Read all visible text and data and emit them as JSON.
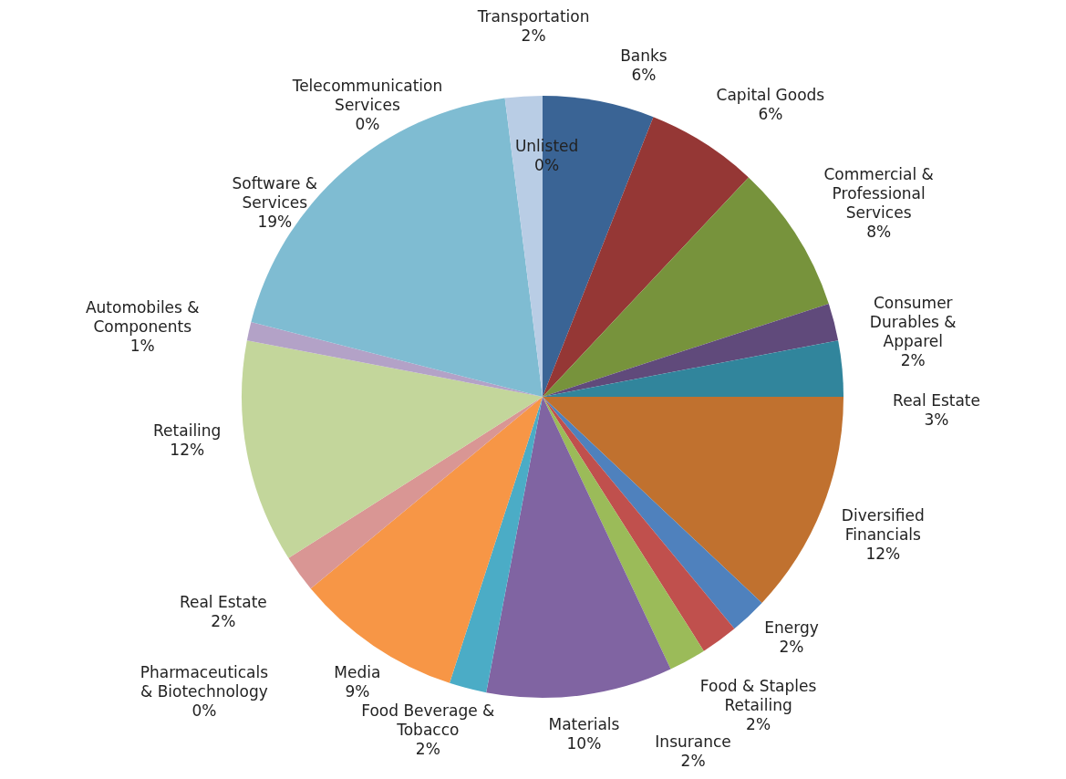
{
  "chart_data": {
    "type": "pie",
    "categories": [
      "Banks",
      "Capital Goods",
      "Commercial & Professional Services",
      "Consumer Durables & Apparel",
      "Real Estate",
      "Diversified Financials",
      "Energy",
      "Food & Staples Retailing",
      "Insurance",
      "Materials",
      "Food Beverage & Tobacco",
      "Media",
      "Pharmaceuticals & Biotechnology",
      "Real Estate",
      "Retailing",
      "Automobiles & Components",
      "Software & Services",
      "Telecommunication Services",
      "Transportation",
      "Unlisted"
    ],
    "values": [
      6,
      6,
      8,
      2,
      3,
      12,
      2,
      2,
      2,
      10,
      2,
      9,
      0,
      2,
      12,
      1,
      19,
      0,
      2,
      0
    ],
    "value_labels": [
      "6%",
      "6%",
      "8%",
      "2%",
      "3%",
      "12%",
      "2%",
      "2%",
      "2%",
      "10%",
      "2%",
      "9%",
      "0%",
      "2%",
      "12%",
      "1%",
      "19%",
      "0%",
      "2%",
      "0%"
    ],
    "colors": [
      "#3a6495",
      "#953735",
      "#77933c",
      "#604a7b",
      "#31859c",
      "#c0712f",
      "#4f81bd",
      "#c0504d",
      "#9bbb59",
      "#8064a2",
      "#4bacc6",
      "#f79646",
      "#95b3d7",
      "#d99694",
      "#c3d69b",
      "#b3a2c7",
      "#7fbcd2",
      "#fac090",
      "#b9cde5",
      "#e6b9b8"
    ],
    "legend": false
  }
}
